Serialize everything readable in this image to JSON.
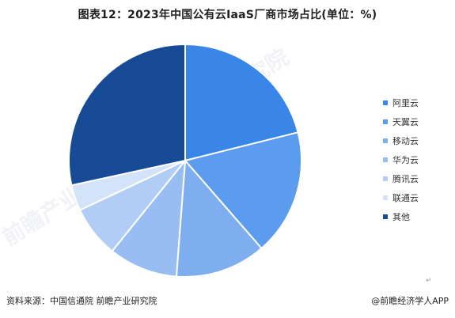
{
  "title": "图表12：2023年中国公有云IaaS厂商市场占比(单位：%)",
  "footer": {
    "source": "资料来源：中国信通院 前瞻产业研究院",
    "brand": "@前瞻经济学人APP",
    "mark": "↵"
  },
  "watermark": {
    "text": "前瞻产业研究院"
  },
  "chart_data": {
    "type": "pie",
    "title": "图表12：2023年中国公有云IaaS厂商市场占比(单位：%)",
    "start_angle_deg": 0,
    "direction": "clockwise",
    "legend_position": "right",
    "labels": [
      "阿里云",
      "天翼云",
      "移动云",
      "华为云",
      "腾讯云",
      "联通云",
      "其他"
    ],
    "values": [
      21.1,
      17.5,
      12.6,
      9.6,
      7.2,
      3.6,
      28.4
    ],
    "colors": [
      "#3a86e8",
      "#5b9cef",
      "#7eaef0",
      "#98bdf2",
      "#b1cdf6",
      "#d3e3fa",
      "#174b96"
    ]
  }
}
